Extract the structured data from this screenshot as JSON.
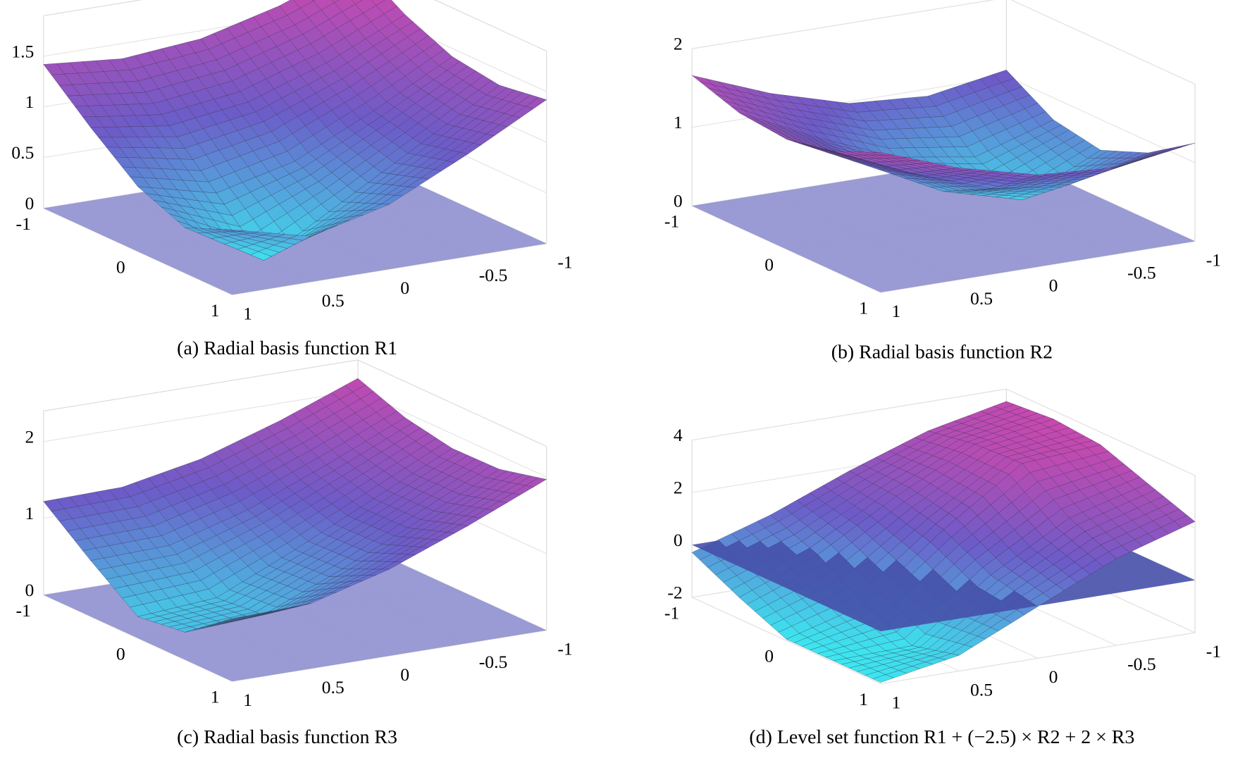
{
  "chart_data": [
    {
      "type": "surface",
      "caption": "(a) Radial basis function R1",
      "x": [
        -1,
        -0.5,
        0,
        0.5,
        1
      ],
      "y": [
        -1,
        -0.5,
        0,
        0.5,
        1
      ],
      "z": [
        [
          1.91,
          1.62,
          1.42,
          1.35,
          1.42
        ],
        [
          1.62,
          1.27,
          1.01,
          0.9,
          1.01
        ],
        [
          1.42,
          1.01,
          0.64,
          0.45,
          0.64
        ],
        [
          1.35,
          0.9,
          0.45,
          0,
          0.45
        ],
        [
          1.42,
          1.01,
          0.64,
          0.45,
          0.64
        ]
      ],
      "xlim": [
        -1,
        1
      ],
      "ylim": [
        -1,
        1
      ],
      "zlim": [
        0,
        1.9
      ],
      "xticks": [
        -1,
        -0.5,
        0,
        0.5,
        1
      ],
      "yticks": [
        -1,
        0,
        1
      ],
      "zticks": [
        0,
        0.5,
        1,
        1.5
      ],
      "plane_z": 0,
      "plane_color": "#8f8fcf"
    },
    {
      "type": "surface",
      "caption": "(b) Radial basis function R2",
      "x": [
        -1,
        -0.5,
        0,
        0.5,
        1
      ],
      "y": [
        -1,
        -0.5,
        0,
        0.5,
        1
      ],
      "z": [
        [
          1.08,
          0.91,
          0.98,
          1.27,
          1.66
        ],
        [
          0.72,
          0.41,
          0.57,
          0.98,
          1.46
        ],
        [
          0.61,
          0.14,
          0.41,
          0.91,
          1.4
        ],
        [
          0.85,
          0.61,
          0.72,
          1.08,
          1.52
        ],
        [
          1.25,
          1.1,
          1.17,
          1.42,
          1.78
        ]
      ],
      "xlim": [
        -1,
        1
      ],
      "ylim": [
        -1,
        1
      ],
      "zlim": [
        0,
        2
      ],
      "xticks": [
        -1,
        -0.5,
        0,
        0.5,
        1
      ],
      "yticks": [
        -1,
        0,
        1
      ],
      "zticks": [
        0,
        1,
        2
      ],
      "plane_z": 0,
      "plane_color": "#8f8fcf"
    },
    {
      "type": "surface",
      "caption": "(c) Radial basis function R3",
      "x": [
        -1,
        -0.5,
        0,
        0.5,
        1
      ],
      "y": [
        -1,
        -0.5,
        0,
        0.5,
        1
      ],
      "z": [
        [
          2.16,
          1.77,
          1.44,
          1.24,
          1.22
        ],
        [
          1.93,
          1.48,
          1.06,
          0.76,
          0.73
        ],
        [
          1.81,
          1.32,
          0.82,
          0.36,
          0.28
        ],
        [
          1.82,
          1.33,
          0.85,
          0.42,
          0.36
        ],
        [
          1.97,
          1.53,
          1.13,
          0.85,
          0.82
        ]
      ],
      "xlim": [
        -1,
        1
      ],
      "ylim": [
        -1,
        1
      ],
      "zlim": [
        0,
        2.4
      ],
      "xticks": [
        -1,
        -0.5,
        0,
        0.5,
        1
      ],
      "yticks": [
        -1,
        0,
        1
      ],
      "zticks": [
        0,
        1,
        2
      ],
      "plane_z": 0,
      "plane_color": "#8f8fcf"
    },
    {
      "type": "surface",
      "caption": "(d) Level set function R1 + (−2.5) × R2 + 2 × R3",
      "x": [
        -1,
        -0.5,
        0,
        0.5,
        1
      ],
      "y": [
        -1,
        -0.5,
        0,
        0.5,
        1
      ],
      "z": [
        [
          3.53,
          2.89,
          1.85,
          0.66,
          -0.29
        ],
        [
          3.68,
          3.21,
          1.71,
          -0.03,
          -1.18
        ],
        [
          3.52,
          3.3,
          1.26,
          -1.11,
          -1.95
        ],
        [
          2.87,
          2.04,
          0.35,
          -1.86,
          -1.95
        ],
        [
          2.24,
          1.32,
          -0.03,
          -1.4,
          -1.95
        ]
      ],
      "xlim": [
        -1,
        1
      ],
      "ylim": [
        -1,
        1
      ],
      "zlim": [
        -2,
        4
      ],
      "xticks": [
        -1,
        -0.5,
        0,
        0.5,
        1
      ],
      "yticks": [
        -1,
        0,
        1
      ],
      "zticks": [
        -2,
        0,
        2,
        4
      ],
      "plane_z": 0,
      "plane_color": "#4650a8"
    }
  ]
}
